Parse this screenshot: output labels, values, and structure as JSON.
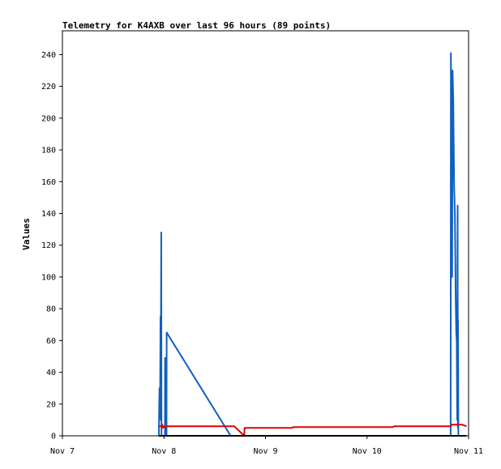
{
  "chart_data": {
    "type": "line",
    "title": "Telemetry for K4AXB over last 96 hours (89 points)",
    "xlabel": "",
    "ylabel": "Values",
    "x_range": [
      "2024-11-07T00:00",
      "2024-11-11T00:00"
    ],
    "x_ticks": [
      {
        "t": "2024-11-07T00:00",
        "label": "Nov 7"
      },
      {
        "t": "2024-11-08T00:00",
        "label": "Nov 8"
      },
      {
        "t": "2024-11-09T00:00",
        "label": "Nov 9"
      },
      {
        "t": "2024-11-10T00:00",
        "label": "Nov 10"
      },
      {
        "t": "2024-11-11T00:00",
        "label": "Nov 11"
      }
    ],
    "ylim": [
      0,
      255
    ],
    "y_ticks": [
      0,
      20,
      40,
      60,
      80,
      100,
      120,
      140,
      160,
      180,
      200,
      220,
      240
    ],
    "grid": false,
    "series": [
      {
        "color": "#1060c0",
        "points": [
          [
            "2024-11-07T22:47",
            0
          ],
          [
            "2024-11-07T22:56",
            30
          ],
          [
            "2024-11-07T23:05",
            20
          ],
          [
            "2024-11-07T23:11",
            75
          ],
          [
            "2024-11-07T23:14",
            10
          ],
          [
            "2024-11-07T23:18",
            80
          ],
          [
            "2024-11-07T23:22",
            128
          ],
          [
            "2024-11-07T23:25",
            0
          ],
          [
            "2024-11-08T00:14",
            0
          ],
          [
            "2024-11-08T00:16",
            49
          ],
          [
            "2024-11-08T00:18",
            0
          ],
          [
            "2024-11-08T00:36",
            0
          ],
          [
            "2024-11-08T00:39",
            65
          ],
          [
            "2024-11-08T15:46",
            0
          ],
          [
            "2024-11-10T19:46",
            0
          ],
          [
            "2024-11-10T19:49",
            241
          ],
          [
            "2024-11-10T20:00",
            180
          ],
          [
            "2024-11-10T20:07",
            100
          ],
          [
            "2024-11-10T20:13",
            230
          ],
          [
            "2024-11-10T20:23",
            212
          ],
          [
            "2024-11-10T20:35",
            157
          ],
          [
            "2024-11-10T20:46",
            140
          ],
          [
            "2024-11-10T20:58",
            84
          ],
          [
            "2024-11-10T21:05",
            65
          ],
          [
            "2024-11-10T21:12",
            60
          ],
          [
            "2024-11-10T21:19",
            10
          ],
          [
            "2024-11-10T21:25",
            145
          ],
          [
            "2024-11-10T21:28",
            5
          ],
          [
            "2024-11-10T21:31",
            73
          ],
          [
            "2024-11-10T21:35",
            0
          ]
        ]
      },
      {
        "color": "#e00000",
        "points": [
          [
            "2024-11-07T22:47",
            6
          ],
          [
            "2024-11-07T23:25",
            6
          ],
          [
            "2024-11-07T23:36",
            7
          ],
          [
            "2024-11-07T23:47",
            5
          ],
          [
            "2024-11-08T00:03",
            6
          ],
          [
            "2024-11-08T00:20",
            5
          ],
          [
            "2024-11-08T00:36",
            6
          ],
          [
            "2024-11-08T03:00",
            6
          ],
          [
            "2024-11-08T16:37",
            6
          ],
          [
            "2024-11-08T18:58",
            0
          ],
          [
            "2024-11-08T19:05",
            5
          ],
          [
            "2024-11-09T06:17",
            5
          ],
          [
            "2024-11-09T06:40",
            5.5
          ],
          [
            "2024-11-10T06:04",
            5.5
          ],
          [
            "2024-11-10T06:30",
            6
          ],
          [
            "2024-11-10T19:46",
            6
          ],
          [
            "2024-11-10T20:00",
            7
          ],
          [
            "2024-11-10T22:30",
            7
          ],
          [
            "2024-11-10T23:30",
            6
          ]
        ]
      },
      {
        "color": "#000000",
        "points": [
          [
            "2024-11-07T22:47",
            0
          ],
          [
            "2024-11-10T23:30",
            0
          ]
        ]
      }
    ]
  }
}
